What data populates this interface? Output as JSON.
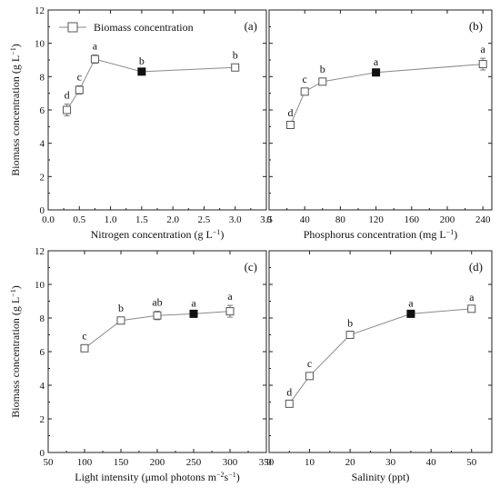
{
  "chart_data": [
    {
      "type": "line",
      "panel_label": "(a)",
      "xlabel": "Nitrogen concentration (g L",
      "xlabel_sup": "−1",
      "xlabel_end": ")",
      "ylabel": "Biomass concentration (g L",
      "ylabel_sup": "−1",
      "ylabel_end": ")",
      "xlim": [
        0,
        3.5
      ],
      "ylim": [
        0,
        12
      ],
      "xticks": [
        "0.0",
        "0.5",
        "1.0",
        "1.5",
        "2.0",
        "2.5",
        "3.0",
        "3.5"
      ],
      "xtick_values": [
        0,
        0.5,
        1.0,
        1.5,
        2.0,
        2.5,
        3.0,
        3.5
      ],
      "yticks": [
        "0",
        "2",
        "4",
        "6",
        "8",
        "10",
        "12"
      ],
      "ytick_values": [
        0,
        2,
        4,
        6,
        8,
        10,
        12
      ],
      "legend": "Biomass concentration",
      "series": [
        {
          "x": [
            0.3,
            0.5,
            0.75,
            1.5,
            3.0
          ],
          "y": [
            6.0,
            7.2,
            9.05,
            8.3,
            8.55
          ],
          "err": [
            0.35,
            0.25,
            0.25,
            0.1,
            0.2
          ],
          "filled": [
            false,
            false,
            false,
            true,
            false
          ],
          "letters": [
            "d",
            "c",
            "a",
            "b",
            "b"
          ]
        }
      ]
    },
    {
      "type": "line",
      "panel_label": "(b)",
      "xlabel": "Phosphorus concentration (mg L",
      "xlabel_sup": "−1",
      "xlabel_end": ")",
      "ylabel": "",
      "xlim": [
        0,
        250
      ],
      "ylim": [
        0,
        12
      ],
      "xticks": [
        "0",
        "40",
        "80",
        "120",
        "160",
        "200",
        "240"
      ],
      "xtick_values": [
        0,
        40,
        80,
        120,
        160,
        200,
        240
      ],
      "yticks": [],
      "ytick_values": [
        0,
        2,
        4,
        6,
        8,
        10,
        12
      ],
      "series": [
        {
          "x": [
            24,
            40,
            60,
            120,
            240
          ],
          "y": [
            5.1,
            7.1,
            7.7,
            8.25,
            8.75
          ],
          "err": [
            0.2,
            0.2,
            0.2,
            0.1,
            0.35
          ],
          "filled": [
            false,
            false,
            false,
            true,
            false
          ],
          "letters": [
            "d",
            "c",
            "b",
            "a",
            "a"
          ]
        }
      ]
    },
    {
      "type": "line",
      "panel_label": "(c)",
      "xlabel": "Light intensity (μmol photons m",
      "xlabel_sup": "−2",
      "xlabel_mid": "s",
      "xlabel_sup2": "−1",
      "xlabel_end": ")",
      "ylabel": "Biomass concentration (g L",
      "ylabel_sup": "−1",
      "ylabel_end": ")",
      "xlim": [
        50,
        350
      ],
      "ylim": [
        0,
        12
      ],
      "xticks": [
        "50",
        "100",
        "150",
        "200",
        "250",
        "300",
        "350"
      ],
      "xtick_values": [
        50,
        100,
        150,
        200,
        250,
        300,
        350
      ],
      "yticks": [
        "0",
        "2",
        "4",
        "6",
        "8",
        "10",
        "12"
      ],
      "ytick_values": [
        0,
        2,
        4,
        6,
        8,
        10,
        12
      ],
      "series": [
        {
          "x": [
            100,
            150,
            200,
            250,
            300
          ],
          "y": [
            6.2,
            7.85,
            8.15,
            8.25,
            8.4
          ],
          "err": [
            0.2,
            0.2,
            0.25,
            0.1,
            0.35
          ],
          "filled": [
            false,
            false,
            false,
            true,
            false
          ],
          "letters": [
            "c",
            "b",
            "ab",
            "a",
            "a"
          ]
        }
      ]
    },
    {
      "type": "line",
      "panel_label": "(d)",
      "xlabel": "Salinity (ppt)",
      "ylabel": "",
      "xlim": [
        0,
        55
      ],
      "ylim": [
        0,
        12
      ],
      "xticks": [
        "0",
        "10",
        "20",
        "30",
        "40",
        "50"
      ],
      "xtick_values": [
        0,
        10,
        20,
        30,
        40,
        50
      ],
      "yticks": [],
      "ytick_values": [
        0,
        2,
        4,
        6,
        8,
        10,
        12
      ],
      "series": [
        {
          "x": [
            5,
            10,
            20,
            35,
            50
          ],
          "y": [
            2.9,
            4.55,
            7.0,
            8.25,
            8.55
          ],
          "err": [
            0.15,
            0.2,
            0.15,
            0.1,
            0.15
          ],
          "filled": [
            false,
            false,
            false,
            true,
            false
          ],
          "letters": [
            "d",
            "c",
            "b",
            "a",
            "a"
          ]
        }
      ]
    }
  ]
}
